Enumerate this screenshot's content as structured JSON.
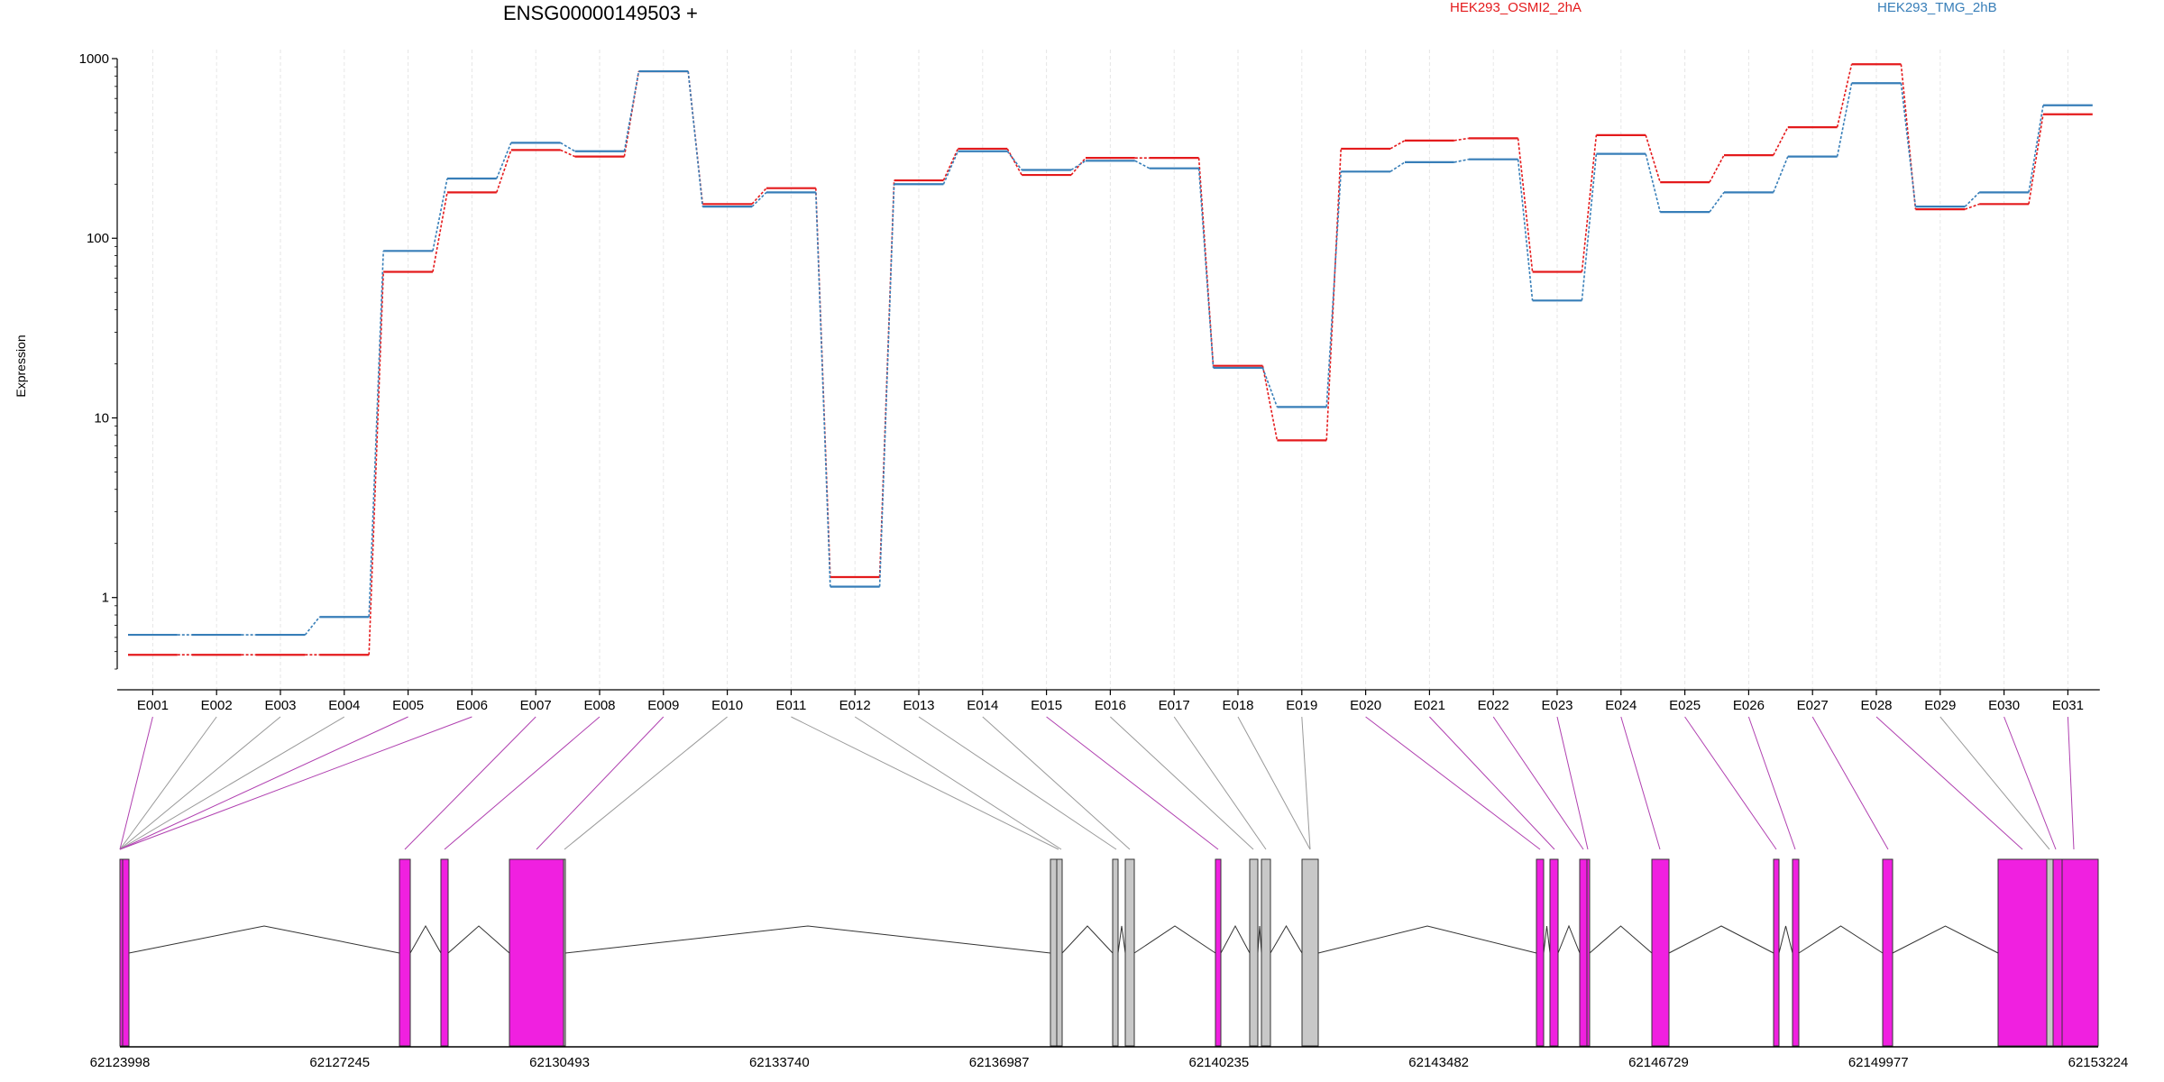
{
  "chart_data": {
    "type": "line",
    "title": "ENSG00000149503 +",
    "ylabel": "Expression",
    "xlabel": "",
    "y_scale": "log",
    "ylim": [
      0.4,
      1000
    ],
    "y_ticks": [
      "1000",
      "100",
      "10",
      "1"
    ],
    "grid": "vertical dashed lines at exon bins",
    "legend_placement": "top-right, horizontal",
    "categories": [
      "E001",
      "E002",
      "E003",
      "E004",
      "E005",
      "E006",
      "E007",
      "E008",
      "E009",
      "E010",
      "E011",
      "E012",
      "E013",
      "E014",
      "E015",
      "E016",
      "E017",
      "E018",
      "E019",
      "E020",
      "E021",
      "E022",
      "E023",
      "E024",
      "E025",
      "E026",
      "E027",
      "E028",
      "E029",
      "E030",
      "E031"
    ],
    "series": [
      {
        "name": "HEK293_OSMI2_2hA",
        "color": "#e41a1c",
        "values": [
          0.48,
          0.48,
          0.48,
          0.48,
          65,
          180,
          310,
          285,
          850,
          155,
          190,
          1.3,
          210,
          315,
          225,
          280,
          280,
          19.5,
          7.5,
          315,
          350,
          360,
          65,
          375,
          205,
          290,
          415,
          930,
          145,
          155,
          490
        ]
      },
      {
        "name": "HEK293_TMG_2hB",
        "color": "#377eb8",
        "values": [
          0.62,
          0.62,
          0.62,
          0.78,
          85,
          215,
          340,
          305,
          850,
          150,
          180,
          1.15,
          200,
          305,
          240,
          270,
          245,
          19,
          11.5,
          235,
          265,
          275,
          45,
          295,
          140,
          180,
          285,
          730,
          150,
          180,
          550
        ]
      }
    ],
    "gene_model": {
      "coordinate_ticks": [
        "62123998",
        "62127245",
        "62130493",
        "62133740",
        "62136987",
        "62140235",
        "62143482",
        "62146729",
        "62149977",
        "62153224"
      ],
      "exon_color_highlight": "#f020e0",
      "exon_color_normal": "#c8c8c8"
    }
  }
}
